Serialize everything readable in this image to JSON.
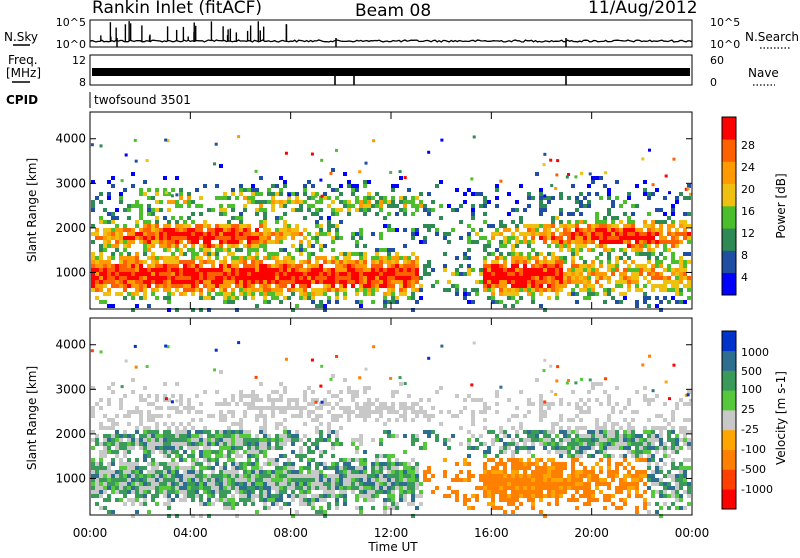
{
  "header": {
    "station": "Rankin Inlet (fitACF)",
    "beam": "Beam 08",
    "date": "11/Aug/2012"
  },
  "top_panels": {
    "nsky_label": "N.Sky",
    "nsky_ticks": [
      "10^5",
      "10^0"
    ],
    "nsearch_label": "N.Search",
    "nsearch_ticks": [
      "10^5",
      "10^0"
    ],
    "freq_label": "Freq.",
    "freq_unit": "[MHz]",
    "freq_ticks": [
      "12",
      "8"
    ],
    "nave_label": "Nave",
    "nave_ticks": [
      "60",
      "0"
    ],
    "cpid_label": "CPID",
    "cpid_value": "twofsound 3501"
  },
  "colors": {
    "power": [
      "#0000ff",
      "#1f4ea3",
      "#2d8a55",
      "#4bbf2b",
      "#f0c010",
      "#ff9a00",
      "#ff6000",
      "#ff0000"
    ],
    "velocity": [
      "#ff0000",
      "#ff4000",
      "#ff7f00",
      "#ffa500",
      "#c8c8c8",
      "#55c83c",
      "#3a9a5a",
      "#2e6e8e",
      "#0033cc"
    ]
  },
  "chart_data": [
    {
      "type": "heatmap",
      "panel": "power",
      "xlabel": "",
      "ylabel": "Slant Range [km]",
      "x_range": [
        "00:00",
        "24:00"
      ],
      "ylim": [
        180,
        4600
      ],
      "ytick_labels": [
        "1000",
        "2000",
        "3000",
        "4000"
      ],
      "colorbar_label": "Power [dB]",
      "colorbar_range": [
        0,
        30
      ],
      "colorbar_ticks": [
        "4",
        "8",
        "12",
        "16",
        "20",
        "24",
        "28"
      ]
    },
    {
      "type": "heatmap",
      "panel": "velocity",
      "xlabel": "Time UT",
      "ylabel": "Slant Range [km]",
      "x_range": [
        "00:00",
        "24:00"
      ],
      "ylim": [
        180,
        4600
      ],
      "xtick_labels": [
        "00:00",
        "04:00",
        "08:00",
        "12:00",
        "16:00",
        "20:00",
        "00:00"
      ],
      "ytick_labels": [
        "1000",
        "2000",
        "3000",
        "4000"
      ],
      "colorbar_label": "Velocity [m s-1]",
      "colorbar_ticks": [
        "1000",
        "500",
        "100",
        "25",
        "-25",
        "-100",
        "-500",
        "-1000"
      ]
    }
  ]
}
